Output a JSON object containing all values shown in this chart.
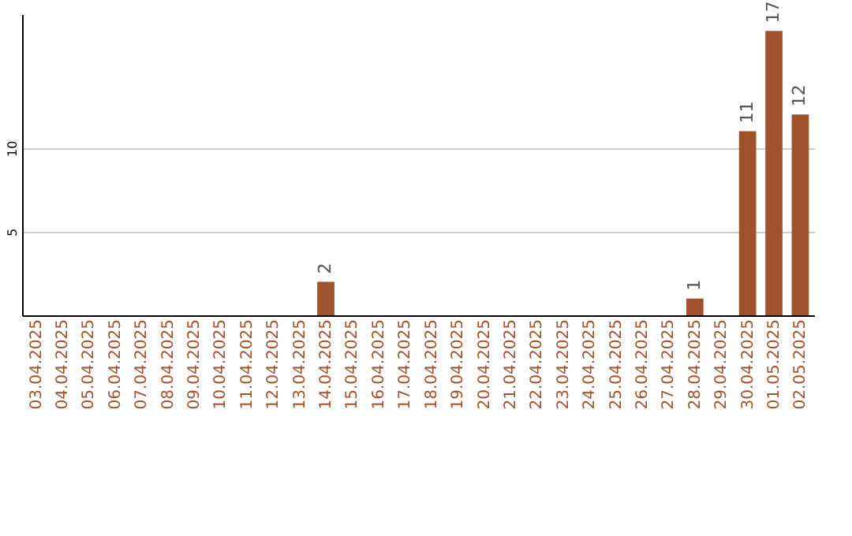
{
  "chart_data": {
    "type": "bar",
    "categories": [
      "03.04.2025",
      "04.04.2025",
      "05.04.2025",
      "06.04.2025",
      "07.04.2025",
      "08.04.2025",
      "09.04.2025",
      "10.04.2025",
      "11.04.2025",
      "12.04.2025",
      "13.04.2025",
      "14.04.2025",
      "15.04.2025",
      "16.04.2025",
      "17.04.2025",
      "18.04.2025",
      "19.04.2025",
      "20.04.2025",
      "21.04.2025",
      "22.04.2025",
      "23.04.2025",
      "24.04.2025",
      "25.04.2025",
      "26.04.2025",
      "27.04.2025",
      "28.04.2025",
      "29.04.2025",
      "30.04.2025",
      "01.05.2025",
      "02.05.2025"
    ],
    "values": [
      0,
      0,
      0,
      0,
      0,
      0,
      0,
      0,
      0,
      0,
      0,
      2,
      0,
      0,
      0,
      0,
      0,
      0,
      0,
      0,
      0,
      0,
      0,
      0,
      0,
      1,
      0,
      11,
      17,
      12
    ],
    "value_labels": [
      null,
      null,
      null,
      null,
      null,
      null,
      null,
      null,
      null,
      null,
      null,
      "2",
      null,
      null,
      null,
      null,
      null,
      null,
      null,
      null,
      null,
      null,
      null,
      null,
      null,
      "1",
      null,
      "11",
      "17",
      "12"
    ],
    "color": "#a0522d",
    "ylim": [
      0,
      18
    ],
    "yticks": [
      5,
      10
    ],
    "grid": "y"
  }
}
